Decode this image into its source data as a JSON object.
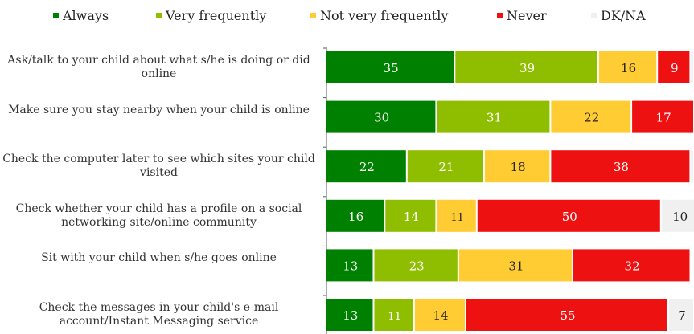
{
  "chart_data": {
    "type": "bar",
    "orientation": "horizontal",
    "stacked": true,
    "legend_position": "top",
    "grid": false,
    "categories": [
      "Ask/talk to your child about what s/he is doing or did online",
      "Make sure you stay nearby when your child is online",
      "Check the computer later to see which sites your child visited",
      "Check whether your child has a profile on a social networking site/online community",
      "Sit with your child when s/he goes online",
      "Check the messages in your child's e-mail account/Instant Messaging service"
    ],
    "series": [
      {
        "name": "Always",
        "color": "#008000",
        "values": [
          35,
          30,
          22,
          16,
          13,
          13
        ]
      },
      {
        "name": "Very frequently",
        "color": "#8fbd00",
        "values": [
          39,
          31,
          21,
          14,
          23,
          11
        ]
      },
      {
        "name": "Not very frequently",
        "color": "#ffcc33",
        "values": [
          16,
          22,
          18,
          11,
          31,
          14
        ]
      },
      {
        "name": "Never",
        "color": "#ee1111",
        "values": [
          9,
          17,
          38,
          50,
          32,
          55
        ]
      },
      {
        "name": "DK/NA",
        "color": "#f0f0f0",
        "values": [
          1,
          0,
          1,
          10,
          0,
          7
        ]
      }
    ]
  }
}
